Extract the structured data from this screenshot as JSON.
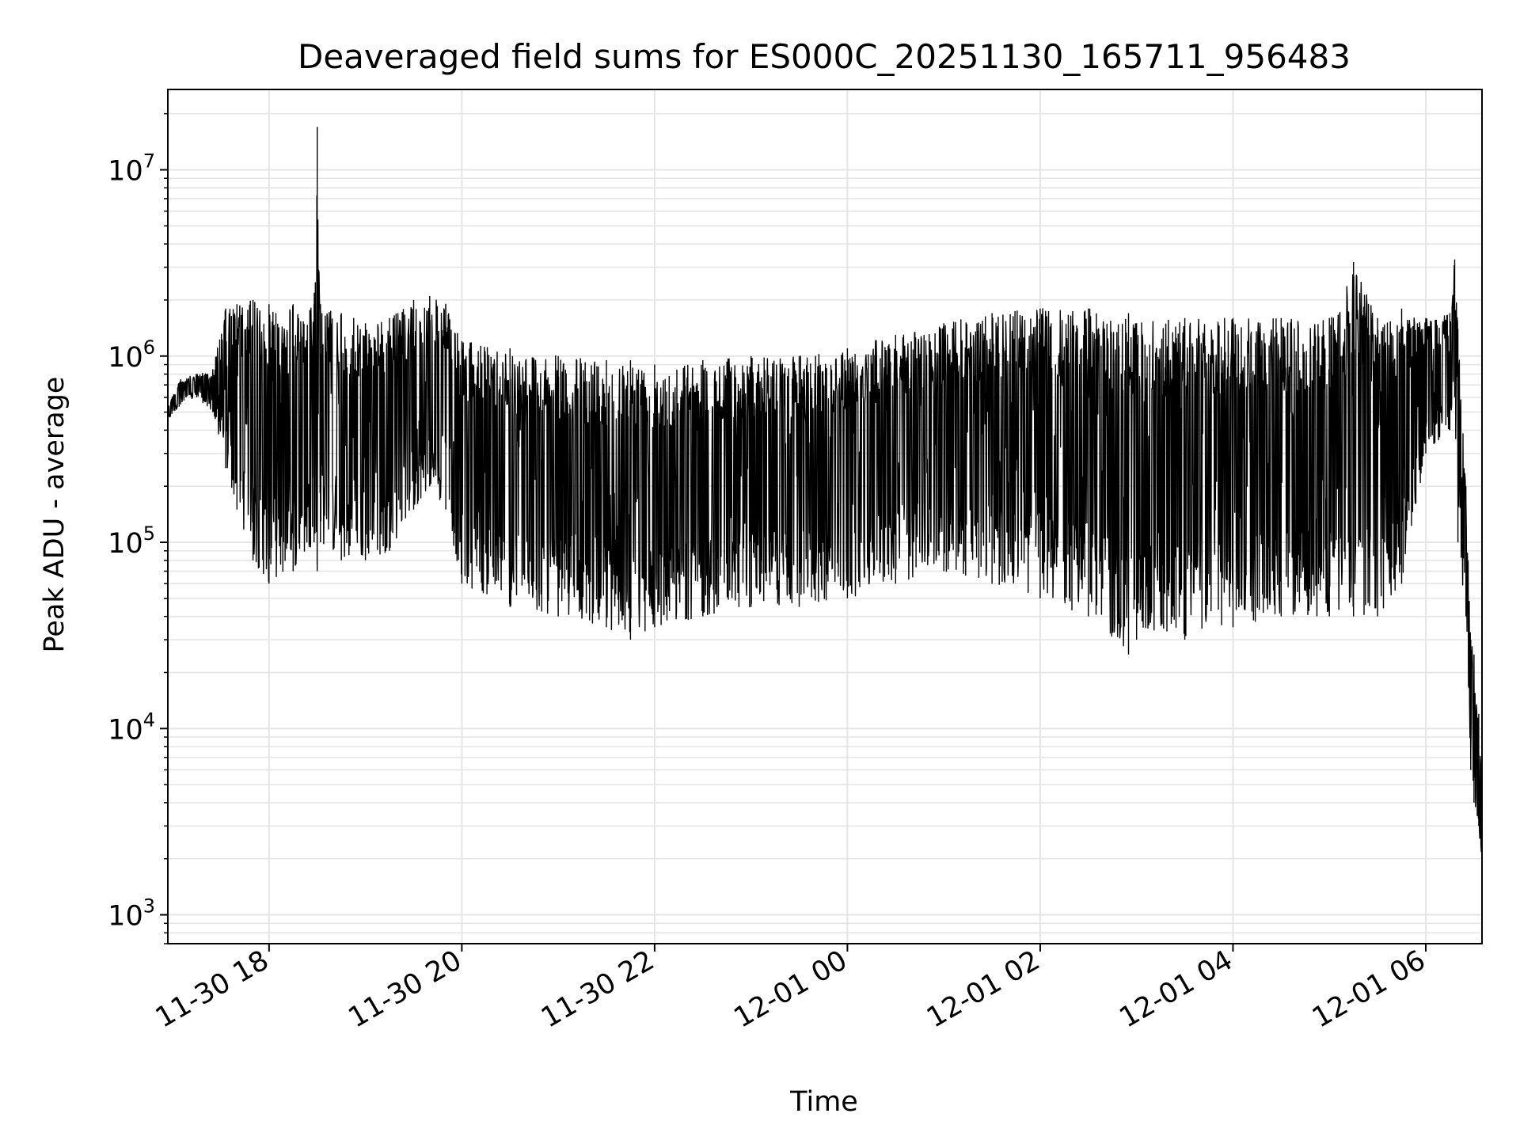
{
  "chart_data": {
    "type": "line",
    "title": "Deaveraged field sums for ES000C_20251130_165711_956483",
    "xlabel": "Time",
    "ylabel": "Peak ADU - average",
    "yscale": "log",
    "ylim": [
      700,
      27000000
    ],
    "xlim": [
      "2025-11-30T16:57",
      "2025-12-01T06:35"
    ],
    "grid": true,
    "legend": "none",
    "line_color": "#000000",
    "x_ticks": [
      "11-30 18",
      "11-30 20",
      "11-30 22",
      "12-01 00",
      "12-01 02",
      "12-01 04",
      "12-01 06"
    ],
    "y_ticks": [
      {
        "base": "10",
        "exp": "3"
      },
      {
        "base": "10",
        "exp": "4"
      },
      {
        "base": "10",
        "exp": "5"
      },
      {
        "base": "10",
        "exp": "6"
      },
      {
        "base": "10",
        "exp": "7"
      }
    ],
    "x": [
      "2025-11-30T16:57",
      "2025-11-30T17:05",
      "2025-11-30T17:15",
      "2025-11-30T17:25",
      "2025-11-30T17:33",
      "2025-11-30T17:40",
      "2025-11-30T17:50",
      "2025-11-30T18:00",
      "2025-11-30T18:15",
      "2025-11-30T18:28",
      "2025-11-30T18:30",
      "2025-11-30T18:32",
      "2025-11-30T18:45",
      "2025-11-30T19:00",
      "2025-11-30T19:15",
      "2025-11-30T19:30",
      "2025-11-30T19:40",
      "2025-11-30T19:50",
      "2025-11-30T20:00",
      "2025-11-30T20:30",
      "2025-11-30T21:00",
      "2025-11-30T21:30",
      "2025-11-30T21:45",
      "2025-11-30T22:00",
      "2025-11-30T22:30",
      "2025-11-30T23:00",
      "2025-11-30T23:30",
      "2025-12-01T00:00",
      "2025-12-01T00:30",
      "2025-12-01T01:00",
      "2025-12-01T01:30",
      "2025-12-01T02:00",
      "2025-12-01T02:30",
      "2025-12-01T02:55",
      "2025-12-01T03:00",
      "2025-12-01T03:30",
      "2025-12-01T04:00",
      "2025-12-01T04:30",
      "2025-12-01T05:00",
      "2025-12-01T05:15",
      "2025-12-01T05:30",
      "2025-12-01T05:45",
      "2025-12-01T06:00",
      "2025-12-01T06:15",
      "2025-12-01T06:18",
      "2025-12-01T06:20",
      "2025-12-01T06:25",
      "2025-12-01T06:28",
      "2025-12-01T06:30",
      "2025-12-01T06:33",
      "2025-12-01T06:35"
    ],
    "upper": [
      550000,
      750000,
      800000,
      850000,
      1800000,
      1900000,
      2000000,
      1900000,
      1900000,
      1900000,
      17000000,
      1900000,
      1700000,
      1500000,
      1600000,
      2000000,
      2100000,
      1900000,
      1200000,
      1100000,
      1000000,
      950000,
      950000,
      900000,
      950000,
      1000000,
      1000000,
      1100000,
      1300000,
      1500000,
      1700000,
      1800000,
      1800000,
      1700000,
      1500000,
      1600000,
      1600000,
      1600000,
      1600000,
      3200000,
      1600000,
      1800000,
      1600000,
      1700000,
      3300000,
      1400000,
      200000,
      30000,
      25000,
      12000,
      5000
    ],
    "lower": [
      450000,
      550000,
      600000,
      500000,
      250000,
      150000,
      80000,
      60000,
      70000,
      100000,
      70000,
      100000,
      80000,
      80000,
      90000,
      150000,
      200000,
      150000,
      60000,
      45000,
      40000,
      35000,
      30000,
      35000,
      40000,
      45000,
      45000,
      50000,
      60000,
      70000,
      60000,
      50000,
      40000,
      25000,
      30000,
      30000,
      35000,
      40000,
      40000,
      40000,
      40000,
      60000,
      300000,
      400000,
      600000,
      100000,
      40000,
      6000,
      4000,
      3000,
      1500
    ]
  }
}
